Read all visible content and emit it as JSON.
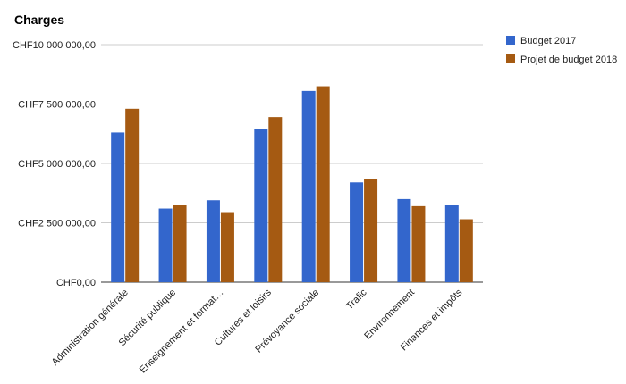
{
  "chart_data": {
    "type": "bar",
    "title": "Charges",
    "xlabel": "",
    "ylabel": "",
    "categories": [
      "Administration générale",
      "Sécurité publique",
      "Enseignement et format…",
      "Cultures et loisirs",
      "Prévoyance sociale",
      "Trafic",
      "Environnement",
      "Finances et impôts"
    ],
    "series": [
      {
        "name": "Budget 2017",
        "color": "#3366cc",
        "values": [
          6300000,
          3100000,
          3450000,
          6450000,
          8050000,
          4200000,
          3500000,
          3250000
        ]
      },
      {
        "name": "Projet de budget 2018",
        "color": "#a55a12",
        "values": [
          7300000,
          3250000,
          2950000,
          6950000,
          8250000,
          4350000,
          3200000,
          2650000
        ]
      }
    ],
    "ylim": [
      0,
      10000000
    ],
    "y_ticks": [
      0,
      2500000,
      5000000,
      7500000,
      10000000
    ],
    "y_tick_labels": [
      "CHF0,00",
      "CHF2 500 000,00",
      "CHF5 000 000,00",
      "CHF7 500 000,00",
      "CHF10 000 000,00"
    ],
    "grid": true,
    "legend_position": "right"
  }
}
